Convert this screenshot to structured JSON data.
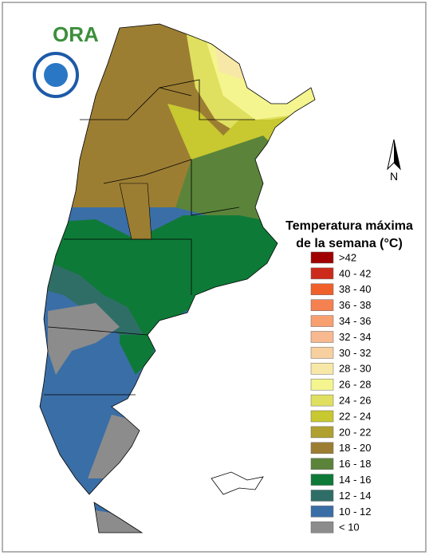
{
  "logo_text": "ORA",
  "north_label": "N",
  "legend": {
    "title_lines": [
      "Temperatura máxima",
      "de la semana (°C)"
    ],
    "items": [
      {
        "label": ">42",
        "color": "#a00000"
      },
      {
        "label": "40 - 42",
        "color": "#cc2a1a"
      },
      {
        "label": "38 - 40",
        "color": "#f0602a"
      },
      {
        "label": "36 - 38",
        "color": "#f58050"
      },
      {
        "label": "34 - 36",
        "color": "#f8a070"
      },
      {
        "label": "32 - 34",
        "color": "#f8b890"
      },
      {
        "label": "30 - 32",
        "color": "#f8d0a0"
      },
      {
        "label": "28 - 30",
        "color": "#f8e8a8"
      },
      {
        "label": "26 - 28",
        "color": "#f5f590"
      },
      {
        "label": "24 - 26",
        "color": "#e0e060"
      },
      {
        "label": "22 - 24",
        "color": "#c8c830"
      },
      {
        "label": "20 - 22",
        "color": "#b0a030"
      },
      {
        "label": "18 - 20",
        "color": "#9c7e33"
      },
      {
        "label": "16 - 18",
        "color": "#5b843a"
      },
      {
        "label": "14 - 16",
        "color": "#0e7a37"
      },
      {
        "label": "12 - 14",
        "color": "#2f6e66"
      },
      {
        "label": "10 - 12",
        "color": "#3a6ea6"
      },
      {
        "label": "< 10",
        "color": "#8c8c8c"
      }
    ]
  }
}
